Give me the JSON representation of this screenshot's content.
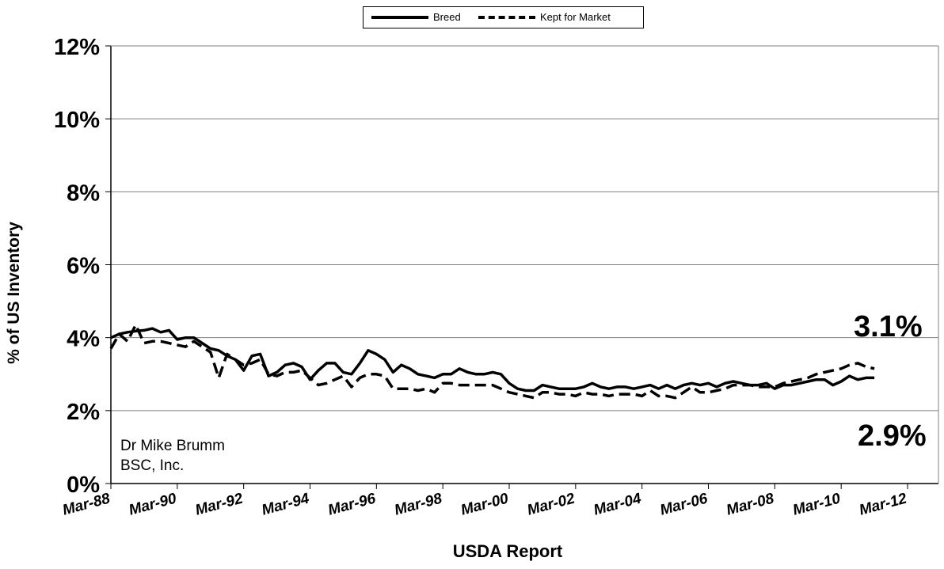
{
  "chart_data": {
    "type": "line",
    "title": "",
    "xlabel": "USDA Report",
    "ylabel": "% of US Inventory",
    "ylim": [
      0,
      12
    ],
    "y_ticks": [
      "0%",
      "2%",
      "4%",
      "6%",
      "8%",
      "10%",
      "12%"
    ],
    "x_tick_labels": [
      "Mar-88",
      "Mar-90",
      "Mar-92",
      "Mar-94",
      "Mar-96",
      "Mar-98",
      "Mar-00",
      "Mar-02",
      "Mar-04",
      "Mar-06",
      "Mar-08",
      "Mar-10",
      "Mar-12"
    ],
    "xlim": [
      "1988-03",
      "2012-03"
    ],
    "grid": "horizontal",
    "legend_position": "top",
    "series": [
      {
        "name": "Breed",
        "style": "solid",
        "x": [
          "1988-03",
          "1988-06",
          "1988-09",
          "1988-12",
          "1989-03",
          "1989-06",
          "1989-09",
          "1989-12",
          "1990-03",
          "1990-06",
          "1990-09",
          "1990-12",
          "1991-03",
          "1991-06",
          "1991-09",
          "1991-12",
          "1992-03",
          "1992-06",
          "1992-09",
          "1992-12",
          "1993-03",
          "1993-06",
          "1993-09",
          "1993-12",
          "1994-03",
          "1994-06",
          "1994-09",
          "1994-12",
          "1995-03",
          "1995-06",
          "1995-09",
          "1995-12",
          "1996-03",
          "1996-06",
          "1996-09",
          "1996-12",
          "1997-03",
          "1997-06",
          "1997-09",
          "1997-12",
          "1998-03",
          "1998-06",
          "1998-09",
          "1998-12",
          "1999-03",
          "1999-06",
          "1999-09",
          "1999-12",
          "2000-03",
          "2000-06",
          "2000-09",
          "2000-12",
          "2001-03",
          "2001-06",
          "2001-09",
          "2001-12",
          "2002-03",
          "2002-06",
          "2002-09",
          "2002-12",
          "2003-03",
          "2003-06",
          "2003-09",
          "2003-12",
          "2004-03",
          "2004-06",
          "2004-09",
          "2004-12",
          "2005-03",
          "2005-06",
          "2005-09",
          "2005-12",
          "2006-03",
          "2006-06",
          "2006-09",
          "2006-12",
          "2007-03",
          "2007-06",
          "2007-09",
          "2007-12",
          "2008-03",
          "2008-06",
          "2008-09",
          "2008-12",
          "2009-03",
          "2009-06",
          "2009-09",
          "2009-12",
          "2010-03",
          "2010-06",
          "2010-09",
          "2010-12",
          "2011-03"
        ],
        "values": [
          4.0,
          4.1,
          4.15,
          4.18,
          4.2,
          4.25,
          4.15,
          4.2,
          3.95,
          4.0,
          4.0,
          3.85,
          3.7,
          3.65,
          3.5,
          3.4,
          3.1,
          3.5,
          3.55,
          2.95,
          3.05,
          3.25,
          3.3,
          3.2,
          2.85,
          3.1,
          3.3,
          3.3,
          3.05,
          3.0,
          3.3,
          3.65,
          3.55,
          3.4,
          3.05,
          3.25,
          3.15,
          3.0,
          2.95,
          2.9,
          3.0,
          3.0,
          3.15,
          3.05,
          3.0,
          3.0,
          3.05,
          3.0,
          2.75,
          2.6,
          2.55,
          2.55,
          2.7,
          2.65,
          2.6,
          2.6,
          2.6,
          2.65,
          2.75,
          2.65,
          2.6,
          2.65,
          2.65,
          2.6,
          2.65,
          2.7,
          2.6,
          2.7,
          2.6,
          2.7,
          2.75,
          2.7,
          2.75,
          2.65,
          2.75,
          2.8,
          2.75,
          2.7,
          2.7,
          2.75,
          2.6,
          2.7,
          2.7,
          2.75,
          2.8,
          2.85,
          2.85,
          2.7,
          2.8,
          2.95,
          2.85,
          2.9,
          2.9
        ]
      },
      {
        "name": "Kept for Market",
        "style": "dashed",
        "x": [
          "1988-03",
          "1988-06",
          "1988-09",
          "1988-12",
          "1989-03",
          "1989-06",
          "1989-09",
          "1989-12",
          "1990-03",
          "1990-06",
          "1990-09",
          "1990-12",
          "1991-03",
          "1991-06",
          "1991-09",
          "1991-12",
          "1992-03",
          "1992-06",
          "1992-09",
          "1992-12",
          "1993-03",
          "1993-06",
          "1993-09",
          "1993-12",
          "1994-03",
          "1994-06",
          "1994-09",
          "1994-12",
          "1995-03",
          "1995-06",
          "1995-09",
          "1995-12",
          "1996-03",
          "1996-06",
          "1996-09",
          "1996-12",
          "1997-03",
          "1997-06",
          "1997-09",
          "1997-12",
          "1998-03",
          "1998-06",
          "1998-09",
          "1998-12",
          "1999-03",
          "1999-06",
          "1999-09",
          "1999-12",
          "2000-03",
          "2000-06",
          "2000-09",
          "2000-12",
          "2001-03",
          "2001-06",
          "2001-09",
          "2001-12",
          "2002-03",
          "2002-06",
          "2002-09",
          "2002-12",
          "2003-03",
          "2003-06",
          "2003-09",
          "2003-12",
          "2004-03",
          "2004-06",
          "2004-09",
          "2004-12",
          "2005-03",
          "2005-06",
          "2005-09",
          "2005-12",
          "2006-03",
          "2006-06",
          "2006-09",
          "2006-12",
          "2007-03",
          "2007-06",
          "2007-09",
          "2007-12",
          "2008-03",
          "2008-06",
          "2008-09",
          "2008-12",
          "2009-03",
          "2009-06",
          "2009-09",
          "2009-12",
          "2010-03",
          "2010-06",
          "2010-09",
          "2010-12",
          "2011-03"
        ],
        "values": [
          3.7,
          4.1,
          3.9,
          4.35,
          3.85,
          3.9,
          3.9,
          3.85,
          3.8,
          3.75,
          3.9,
          3.75,
          3.6,
          2.9,
          3.55,
          3.4,
          3.25,
          3.3,
          3.4,
          3.0,
          2.95,
          3.05,
          3.05,
          3.1,
          2.9,
          2.7,
          2.75,
          2.85,
          2.95,
          2.65,
          2.9,
          3.0,
          3.0,
          2.95,
          2.6,
          2.6,
          2.6,
          2.55,
          2.6,
          2.5,
          2.75,
          2.75,
          2.7,
          2.7,
          2.7,
          2.7,
          2.7,
          2.6,
          2.5,
          2.45,
          2.4,
          2.35,
          2.5,
          2.5,
          2.45,
          2.45,
          2.4,
          2.5,
          2.45,
          2.45,
          2.4,
          2.45,
          2.45,
          2.45,
          2.4,
          2.55,
          2.4,
          2.4,
          2.35,
          2.5,
          2.65,
          2.5,
          2.5,
          2.55,
          2.6,
          2.7,
          2.7,
          2.7,
          2.65,
          2.65,
          2.65,
          2.75,
          2.8,
          2.85,
          2.9,
          3.0,
          3.05,
          3.1,
          3.15,
          3.25,
          3.3,
          3.2,
          3.15
        ]
      }
    ],
    "annotations": {
      "end_label_kept": "3.1%",
      "end_label_breed": "2.9%",
      "credit_line1": "Dr Mike Brumm",
      "credit_line2": "BSC, Inc."
    }
  }
}
